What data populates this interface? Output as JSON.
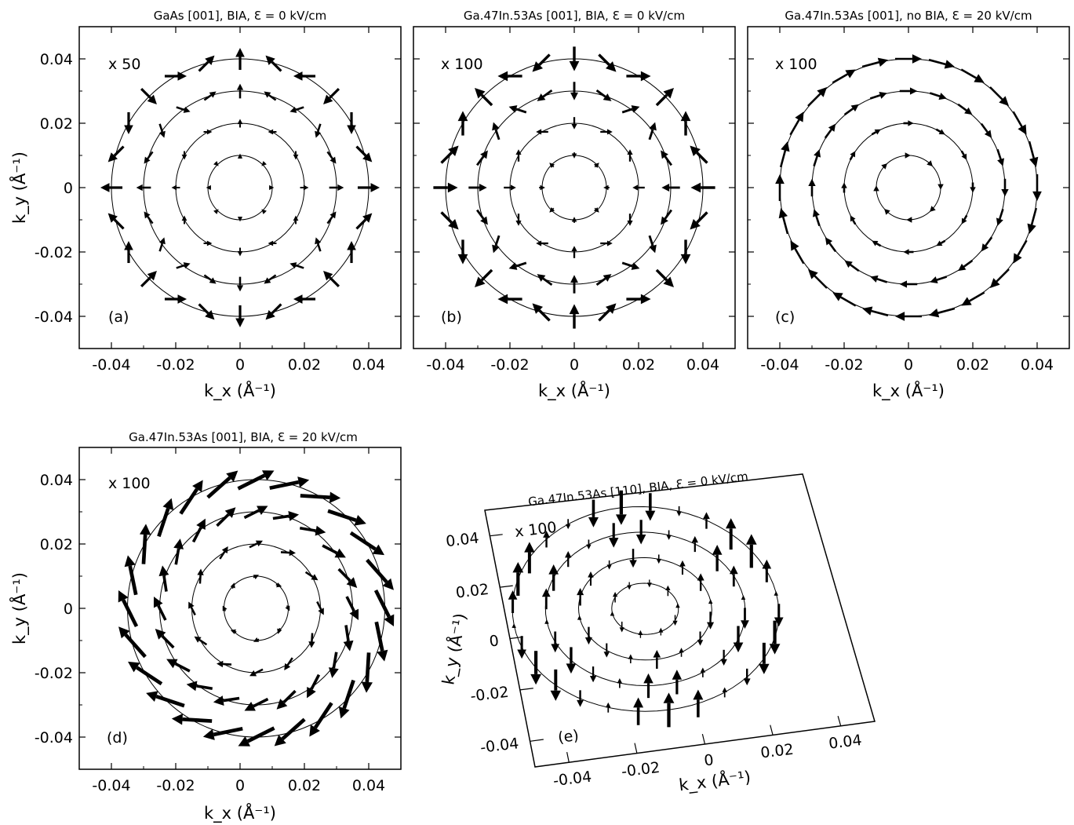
{
  "chart_data": [
    {
      "id": "a",
      "type": "vector-field",
      "title": "GaAs [001], BIA, Ɛ = 0 kV/cm",
      "xlabel": "k_x (Å⁻¹)",
      "ylabel": "k_y (Å⁻¹)",
      "xlim": [
        -0.05,
        0.05
      ],
      "ylim": [
        -0.05,
        0.05
      ],
      "xticks": [
        "-0.04",
        "-0.02",
        "0",
        "0.02",
        "0.04"
      ],
      "yticks": [
        "-0.04",
        "-0.02",
        "0",
        "0.02",
        "0.04"
      ],
      "scale_label": "x 50",
      "panel_label": "(a)",
      "rings": [
        0.01,
        0.02,
        0.03,
        0.04
      ],
      "field": "bia"
    },
    {
      "id": "b",
      "type": "vector-field",
      "title": "Ga.47In.53As [001], BIA, Ɛ = 0 kV/cm",
      "xlabel": "k_x (Å⁻¹)",
      "ylabel": "",
      "xlim": [
        -0.05,
        0.05
      ],
      "ylim": [
        -0.05,
        0.05
      ],
      "xticks": [
        "-0.04",
        "-0.02",
        "0",
        "0.02",
        "0.04"
      ],
      "yticks": [],
      "scale_label": "x 100",
      "panel_label": "(b)",
      "rings": [
        0.01,
        0.02,
        0.03,
        0.04
      ],
      "field": "bia-ingaas"
    },
    {
      "id": "c",
      "type": "vector-field",
      "title": "Ga.47In.53As [001], no BIA, Ɛ = 20 kV/cm",
      "xlabel": "k_x (Å⁻¹)",
      "ylabel": "",
      "xlim": [
        -0.05,
        0.05
      ],
      "ylim": [
        -0.05,
        0.05
      ],
      "xticks": [
        "-0.04",
        "-0.02",
        "0",
        "0.02",
        "0.04"
      ],
      "yticks": [],
      "scale_label": "x 100",
      "panel_label": "(c)",
      "rings": [
        0.01,
        0.02,
        0.03,
        0.04
      ],
      "field": "rashba"
    },
    {
      "id": "d",
      "type": "vector-field",
      "title": "Ga.47In.53As [001], BIA, Ɛ = 20 kV/cm",
      "xlabel": "k_x (Å⁻¹)",
      "ylabel": "k_y (Å⁻¹)",
      "xlim": [
        -0.05,
        0.05
      ],
      "ylim": [
        -0.05,
        0.05
      ],
      "xticks": [
        "-0.04",
        "-0.02",
        "0",
        "0.02",
        "0.04"
      ],
      "yticks": [
        "-0.04",
        "-0.02",
        "0",
        "0.02",
        "0.04"
      ],
      "scale_label": "x 100",
      "panel_label": "(d)",
      "rings": [
        0.01,
        0.02,
        0.03,
        0.04
      ],
      "ring_center": [
        0.005,
        0.0
      ],
      "field": "combined"
    },
    {
      "id": "e",
      "type": "vector-field",
      "title": "Ga.47In.53As [110], BIA, Ɛ = 0 kV/cm",
      "xlabel": "k_x (Å⁻¹)",
      "ylabel": "k_y (Å⁻¹)",
      "xlim": [
        -0.05,
        0.05
      ],
      "ylim": [
        -0.05,
        0.05
      ],
      "xticks": [
        "-0.04",
        "-0.02",
        "0",
        "0.02",
        "0.04"
      ],
      "yticks": [
        "-0.04",
        "-0.02",
        "0",
        "0.02",
        "0.04"
      ],
      "scale_label": "x 100",
      "panel_label": "(e)",
      "rings": [
        0.01,
        0.02,
        0.03,
        0.04
      ],
      "field": "vertical",
      "perspective": "tilted"
    }
  ]
}
